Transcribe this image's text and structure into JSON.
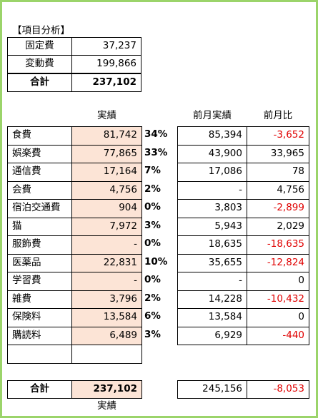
{
  "title": "【項目分析】",
  "summary": {
    "rows": [
      [
        "固定費",
        "37,237"
      ],
      [
        "変動費",
        "199,866"
      ]
    ],
    "total": [
      "合計",
      "237,102"
    ]
  },
  "columns": {
    "actual": "実績",
    "prev": "前月実績",
    "diff": "前月比"
  },
  "rows": [
    [
      "食費",
      "81,742",
      "34%",
      "85,394",
      "-3,652"
    ],
    [
      "娯楽費",
      "77,865",
      "33%",
      "43,900",
      "33,965"
    ],
    [
      "通信費",
      "17,164",
      "7%",
      "17,086",
      "78"
    ],
    [
      "会費",
      "4,756",
      "2%",
      "-",
      "4,756"
    ],
    [
      "宿泊交通費",
      "904",
      "0%",
      "3,803",
      "-2,899"
    ],
    [
      "猫",
      "7,972",
      "3%",
      "5,943",
      "2,029"
    ],
    [
      "服飾費",
      "-",
      "0%",
      "18,635",
      "-18,635"
    ],
    [
      "医薬品",
      "22,831",
      "10%",
      "35,655",
      "-12,824"
    ],
    [
      "学習費",
      "-",
      "0%",
      "-",
      "0"
    ],
    [
      "雑費",
      "3,796",
      "2%",
      "14,228",
      "-10,432"
    ],
    [
      "保険料",
      "13,584",
      "6%",
      "13,584",
      "0"
    ],
    [
      "購読料",
      "6,489",
      "3%",
      "6,929",
      "-440"
    ]
  ],
  "total": {
    "label": "合計",
    "value": "237,102",
    "prev": "245,156",
    "diff": "-8,053"
  },
  "footer": "実績"
}
